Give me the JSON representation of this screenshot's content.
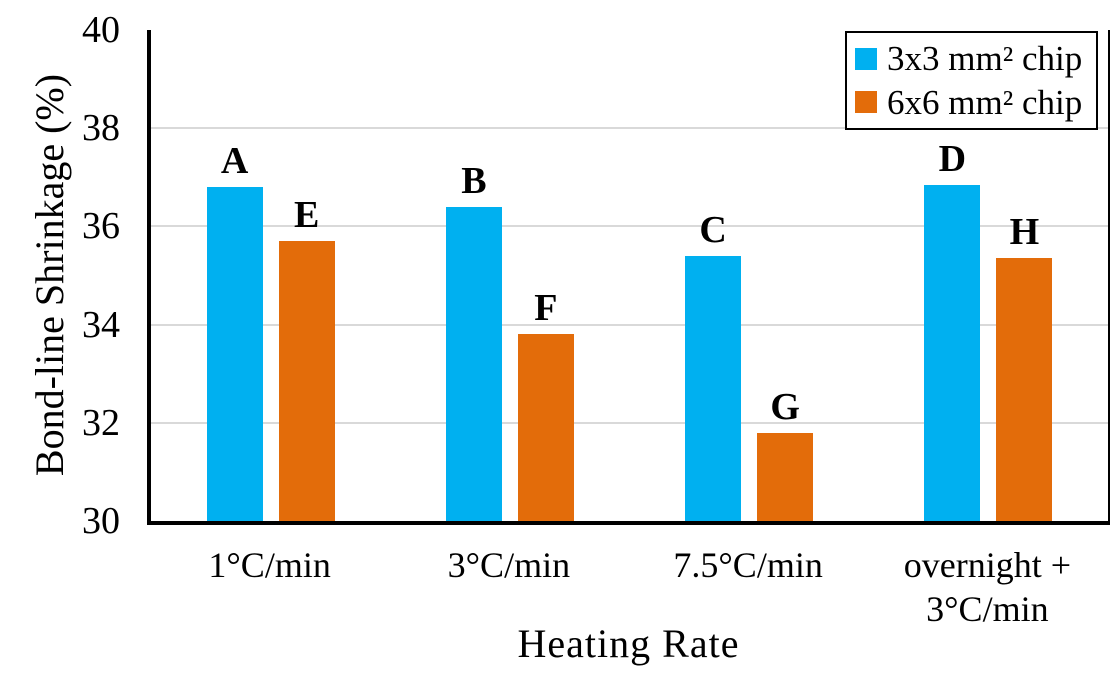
{
  "chart_data": {
    "type": "bar",
    "title": "",
    "xlabel": "Heating Rate",
    "ylabel": "Bond-line Shrinkage (%)",
    "ylim": [
      30,
      40
    ],
    "yticks": [
      30,
      32,
      34,
      36,
      38,
      40
    ],
    "grid": true,
    "legend_position": "top-right",
    "categories": [
      "1°C/min",
      "3°C/min",
      "7.5°C/min",
      "overnight +\n3°C/min"
    ],
    "series": [
      {
        "name": "3x3 mm² chip",
        "color": "#00B0F0",
        "values": [
          36.8,
          36.4,
          35.4,
          36.85
        ],
        "bar_labels": [
          "A",
          "B",
          "C",
          "D"
        ]
      },
      {
        "name": "6x6 mm² chip",
        "color": "#E36C0A",
        "values": [
          35.7,
          33.8,
          31.8,
          35.35
        ],
        "bar_labels": [
          "E",
          "F",
          "G",
          "H"
        ]
      }
    ],
    "colors": {
      "gridline": "#D9D9D9",
      "axis": "#000000",
      "text": "#000000",
      "background": "#FFFFFF"
    }
  }
}
